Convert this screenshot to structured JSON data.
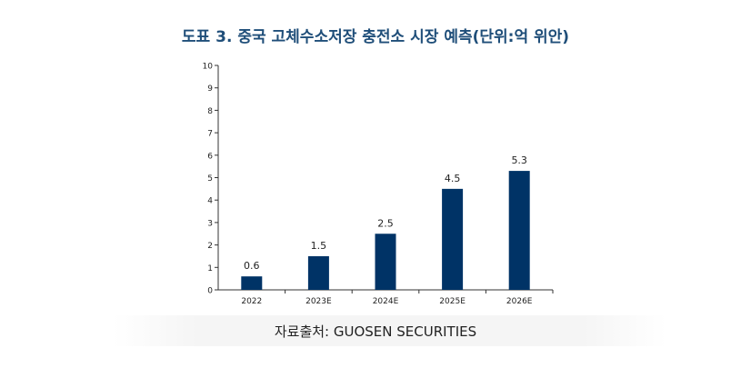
{
  "title": "도표 3. 중국 고체수소저장 충전소 시장 예측(단위:억 위안)",
  "source": "자료출처: GUOSEN SECURITIES",
  "colors": {
    "bar": "#003366",
    "title": "#1f4e79"
  },
  "chart_data": {
    "type": "bar",
    "title": "도표 3. 중국 고체수소저장 충전소 시장 예측(단위:억 위안)",
    "categories": [
      "2022",
      "2023E",
      "2024E",
      "2025E",
      "2026E"
    ],
    "values": [
      0.6,
      1.5,
      2.5,
      4.5,
      5.3
    ],
    "data_labels": [
      "0.6",
      "1.5",
      "2.5",
      "4.5",
      "5.3"
    ],
    "yticks": [
      0,
      1,
      2,
      3,
      4,
      5,
      6,
      7,
      8,
      9,
      10
    ],
    "ylim": [
      0,
      10
    ],
    "xlabel": "",
    "ylabel": "",
    "grid": false
  }
}
